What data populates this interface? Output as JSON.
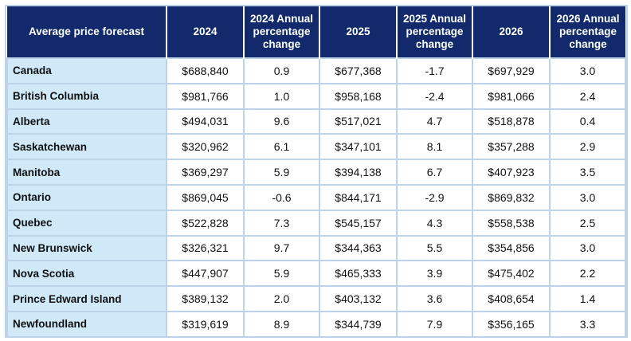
{
  "header": {
    "col0": "Average price forecast",
    "col1": "2024",
    "col2": "2024 Annual percentage change",
    "col3": "2025",
    "col4": "2025 Annual percentage change",
    "col5": "2026",
    "col6": "2026 Annual percentage change"
  },
  "rows": [
    {
      "region": "Canada",
      "p2024": "$688,840",
      "c2024": "0.9",
      "p2025": "$677,368",
      "c2025": "-1.7",
      "p2026": "$697,929",
      "c2026": "3.0"
    },
    {
      "region": "British Columbia",
      "p2024": "$981,766",
      "c2024": "1.0",
      "p2025": "$958,168",
      "c2025": "-2.4",
      "p2026": "$981,066",
      "c2026": "2.4"
    },
    {
      "region": "Alberta",
      "p2024": "$494,031",
      "c2024": "9.6",
      "p2025": "$517,021",
      "c2025": "4.7",
      "p2026": "$518,878",
      "c2026": "0.4"
    },
    {
      "region": "Saskatchewan",
      "p2024": "$320,962",
      "c2024": "6.1",
      "p2025": "$347,101",
      "c2025": "8.1",
      "p2026": "$357,288",
      "c2026": "2.9"
    },
    {
      "region": "Manitoba",
      "p2024": "$369,297",
      "c2024": "5.9",
      "p2025": "$394,138",
      "c2025": "6.7",
      "p2026": "$407,923",
      "c2026": "3.5"
    },
    {
      "region": "Ontario",
      "p2024": "$869,045",
      "c2024": "-0.6",
      "p2025": "$844,171",
      "c2025": "-2.9",
      "p2026": "$869,832",
      "c2026": "3.0"
    },
    {
      "region": "Quebec",
      "p2024": "$522,828",
      "c2024": "7.3",
      "p2025": "$545,157",
      "c2025": "4.3",
      "p2026": "$558,538",
      "c2026": "2.5"
    },
    {
      "region": "New Brunswick",
      "p2024": "$326,321",
      "c2024": "9.7",
      "p2025": "$344,363",
      "c2025": "5.5",
      "p2026": "$354,856",
      "c2026": "3.0"
    },
    {
      "region": "Nova Scotia",
      "p2024": "$447,907",
      "c2024": "5.9",
      "p2025": "$465,333",
      "c2025": "3.9",
      "p2026": "$475,402",
      "c2026": "2.2"
    },
    {
      "region": "Prince Edward Island",
      "p2024": "$389,132",
      "c2024": "2.0",
      "p2025": "$403,132",
      "c2025": "3.6",
      "p2026": "$408,654",
      "c2026": "1.4"
    },
    {
      "region": "Newfoundland",
      "p2024": "$319,619",
      "c2024": "8.9",
      "p2025": "$344,739",
      "c2025": "7.9",
      "p2026": "$356,165",
      "c2026": "3.3"
    }
  ],
  "colors": {
    "header_bg": "#122a6b",
    "region_bg": "#cfe9f8",
    "grid": "#bcd3ea"
  }
}
